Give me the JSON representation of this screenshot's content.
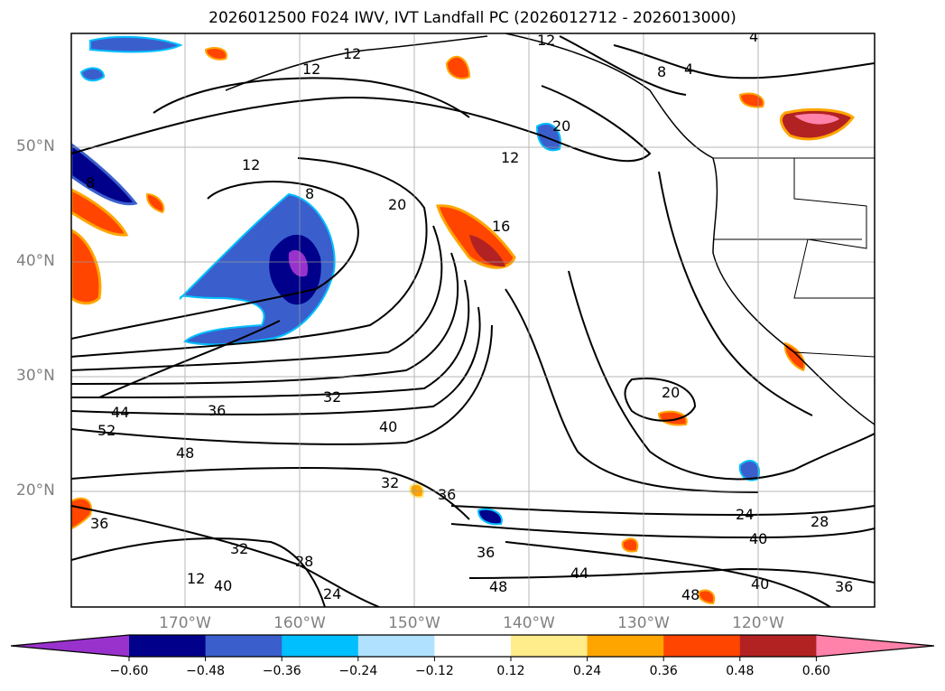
{
  "title": "2026012500 F024 IWV, IVT Landfall PC (2026012712 - 2026013000)",
  "lat_labels": [
    "50°N",
    "40°N",
    "30°N",
    "20°N"
  ],
  "lon_labels": [
    "170°W",
    "160°W",
    "150°W",
    "140°W",
    "130°W",
    "120°W"
  ],
  "colorbar": {
    "ticks": [
      "−0.60",
      "−0.48",
      "−0.36",
      "−0.24",
      "−0.12",
      "0.12",
      "0.24",
      "0.36",
      "0.48",
      "0.60"
    ],
    "colors": [
      "#9932cc",
      "#00008b",
      "#3a5fcd",
      "#00bfff",
      "#b0e2ff",
      "#ffffff",
      "#ffec8b",
      "#ffa500",
      "#ff4500",
      "#b22222",
      "#ff82ab"
    ]
  },
  "contour_labels": [
    "12",
    "8",
    "20",
    "12",
    "20",
    "16",
    "8",
    "4",
    "4",
    "12",
    "12",
    "8",
    "32",
    "36",
    "44",
    "52",
    "48",
    "40",
    "32",
    "36",
    "36",
    "20",
    "24",
    "28",
    "40",
    "44",
    "48",
    "48",
    "32",
    "28",
    "24",
    "40",
    "36",
    "12",
    "12",
    "40",
    "36"
  ]
}
